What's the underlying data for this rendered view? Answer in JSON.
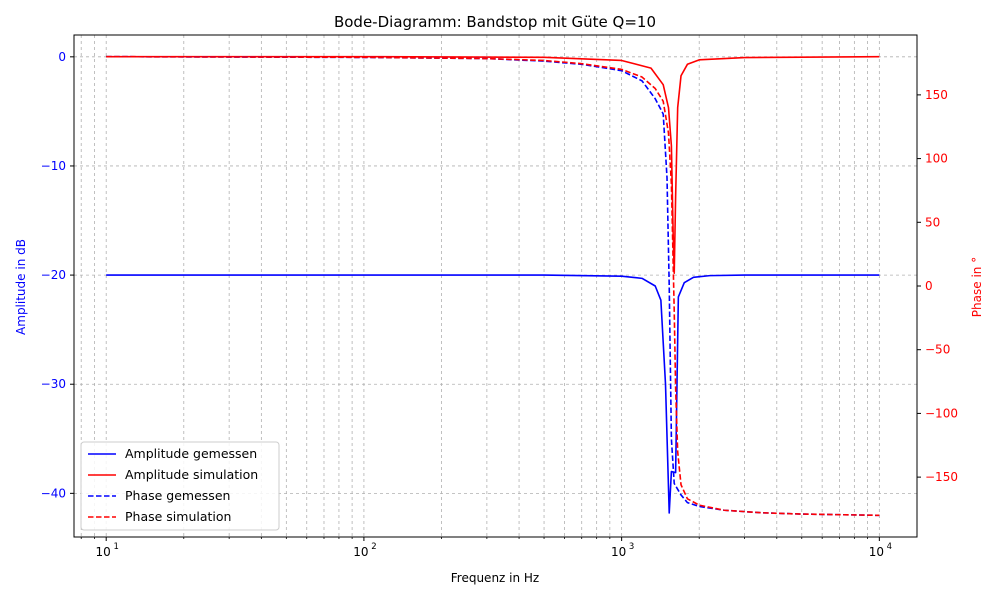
{
  "chart_data": {
    "type": "line",
    "title": "Bode-Diagramm: Bandstop mit Güte Q=10",
    "xlabel": "Frequenz in Hz",
    "ylabel_left": "Amplitude in dB",
    "ylabel_right": "Phase in °",
    "x_scale": "log",
    "xlim": [
      7.5,
      14000
    ],
    "ylim_left": [
      -44,
      2
    ],
    "ylim_right": [
      -197,
      197
    ],
    "grid": true,
    "legend_position": "lower-left",
    "x_ticks": [
      {
        "value": 10,
        "base": "10",
        "exp": "1"
      },
      {
        "value": 100,
        "base": "10",
        "exp": "2"
      },
      {
        "value": 1000,
        "base": "10",
        "exp": "3"
      },
      {
        "value": 10000,
        "base": "10",
        "exp": "4"
      }
    ],
    "y_ticks_left": [
      {
        "value": 0,
        "label": "0"
      },
      {
        "value": -10,
        "label": "−10"
      },
      {
        "value": -20,
        "label": "−20"
      },
      {
        "value": -30,
        "label": "−30"
      },
      {
        "value": -40,
        "label": "−40"
      }
    ],
    "y_ticks_right": [
      {
        "value": 150,
        "label": "150"
      },
      {
        "value": 100,
        "label": "100"
      },
      {
        "value": 50,
        "label": "50"
      },
      {
        "value": 0,
        "label": "0"
      },
      {
        "value": -50,
        "label": "−50"
      },
      {
        "value": -100,
        "label": "−100"
      },
      {
        "value": -150,
        "label": "−150"
      }
    ],
    "colors": {
      "left_axis": "#0000ff",
      "right_axis": "#ff0000",
      "grid": "#b0b0b0"
    },
    "series": [
      {
        "name": "Amplitude gemessen",
        "axis": "left",
        "color": "#0000ff",
        "style": "solid",
        "points": [
          [
            10,
            -20
          ],
          [
            100,
            -20
          ],
          [
            500,
            -20
          ],
          [
            1000,
            -20.1
          ],
          [
            1200,
            -20.3
          ],
          [
            1350,
            -21
          ],
          [
            1420,
            -22.3
          ],
          [
            1480,
            -30
          ],
          [
            1530,
            -41.8
          ],
          [
            1560,
            -38
          ],
          [
            1620,
            -38.1
          ],
          [
            1660,
            -22
          ],
          [
            1750,
            -20.7
          ],
          [
            1900,
            -20.2
          ],
          [
            2200,
            -20.05
          ],
          [
            3000,
            -20
          ],
          [
            10000,
            -20
          ]
        ]
      },
      {
        "name": "Amplitude simulation",
        "axis": "right",
        "color": "#ff0000",
        "style": "solid",
        "points": [
          [
            10,
            180
          ],
          [
            100,
            180
          ],
          [
            500,
            179.5
          ],
          [
            1000,
            177
          ],
          [
            1300,
            171
          ],
          [
            1450,
            158
          ],
          [
            1520,
            140
          ],
          [
            1560,
            110
          ],
          [
            1585,
            40
          ],
          [
            1600,
            10
          ],
          [
            1620,
            70
          ],
          [
            1650,
            140
          ],
          [
            1700,
            165
          ],
          [
            1800,
            174
          ],
          [
            2000,
            177.5
          ],
          [
            3000,
            179.3
          ],
          [
            10000,
            180
          ]
        ]
      },
      {
        "name": "Phase gemessen",
        "axis": "right",
        "color": "#0000ff",
        "style": "dashed",
        "points": [
          [
            10,
            180
          ],
          [
            100,
            179.4
          ],
          [
            300,
            178.5
          ],
          [
            500,
            176.5
          ],
          [
            700,
            174
          ],
          [
            1000,
            169
          ],
          [
            1200,
            161
          ],
          [
            1350,
            147
          ],
          [
            1450,
            135
          ],
          [
            1500,
            85
          ],
          [
            1530,
            0
          ],
          [
            1560,
            -120
          ],
          [
            1600,
            -155
          ],
          [
            1700,
            -164
          ],
          [
            1800,
            -170
          ],
          [
            2000,
            -173
          ],
          [
            2500,
            -176
          ],
          [
            3500,
            -178
          ],
          [
            5000,
            -179
          ],
          [
            10000,
            -180
          ]
        ]
      },
      {
        "name": "Phase simulation",
        "axis": "right",
        "color": "#ff0000",
        "style": "dashed",
        "points": [
          [
            10,
            180
          ],
          [
            100,
            179.5
          ],
          [
            300,
            178.5
          ],
          [
            500,
            177
          ],
          [
            700,
            174.5
          ],
          [
            1000,
            170
          ],
          [
            1200,
            164
          ],
          [
            1350,
            155
          ],
          [
            1450,
            145
          ],
          [
            1520,
            120
          ],
          [
            1560,
            80
          ],
          [
            1580,
            30
          ],
          [
            1600,
            -20
          ],
          [
            1620,
            -80
          ],
          [
            1650,
            -130
          ],
          [
            1700,
            -156
          ],
          [
            1800,
            -167
          ],
          [
            2000,
            -172
          ],
          [
            2500,
            -176
          ],
          [
            3500,
            -178
          ],
          [
            5000,
            -179
          ],
          [
            10000,
            -180
          ]
        ]
      }
    ]
  }
}
